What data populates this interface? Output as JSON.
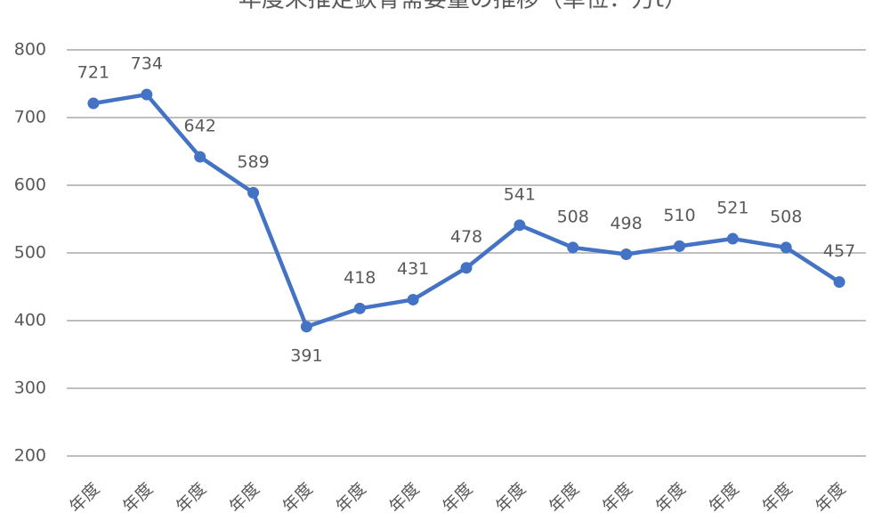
{
  "chart_data": {
    "type": "line",
    "title": "年度末推定鉄骨需要量の推移（単位：万t）",
    "categories": [
      "年度",
      "年度",
      "年度",
      "年度",
      "年度",
      "年度",
      "年度",
      "年度",
      "年度",
      "年度",
      "年度",
      "年度",
      "年度",
      "年度",
      "年度"
    ],
    "series": [
      {
        "name": "鉄骨需要量",
        "color": "#4472c4",
        "values": [
          721,
          734,
          642,
          589,
          391,
          418,
          431,
          478,
          541,
          508,
          498,
          510,
          521,
          508,
          457
        ]
      }
    ],
    "ylim": [
      200,
      800
    ],
    "yticks": [
      200,
      300,
      400,
      500,
      600,
      700,
      800
    ],
    "grid": true
  }
}
